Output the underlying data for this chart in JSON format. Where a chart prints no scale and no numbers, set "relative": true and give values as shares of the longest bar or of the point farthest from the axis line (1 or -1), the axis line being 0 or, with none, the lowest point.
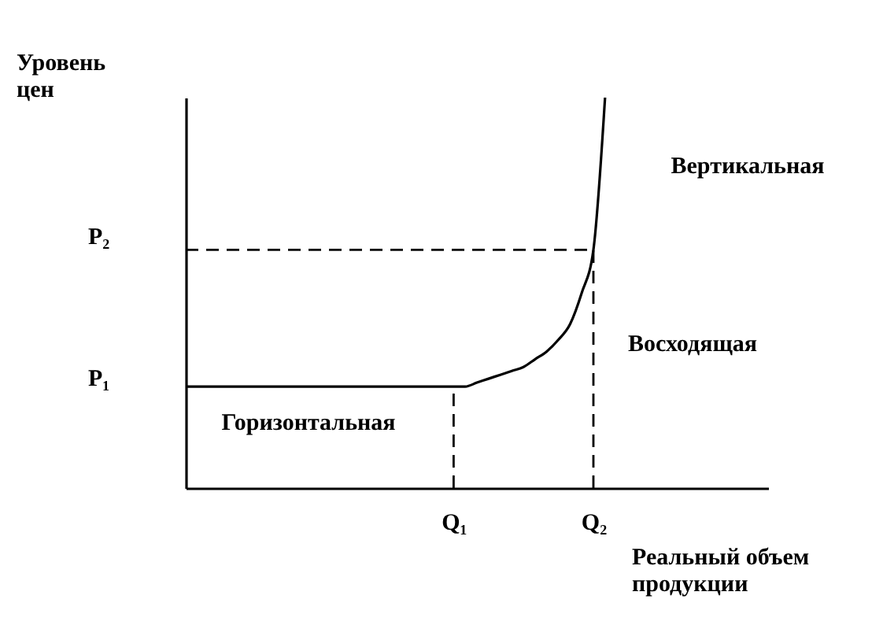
{
  "chart_data": {
    "type": "line",
    "relative": true,
    "xlabel": "Реальный объем продукции",
    "ylabel": "Уровень цен",
    "grid": false,
    "marker": "none",
    "categories": [
      null,
      null,
      null,
      null,
      null,
      null,
      null,
      null,
      null,
      null,
      null,
      null,
      null,
      null,
      null,
      null,
      null,
      null,
      null,
      null,
      null,
      null,
      null,
      "Q₁",
      null,
      null,
      null,
      null,
      null,
      null,
      null,
      null,
      null,
      null,
      null,
      "Q₂",
      null,
      null,
      null,
      null,
      null,
      null,
      null,
      null,
      null,
      null,
      null,
      null,
      null,
      null,
      null
    ],
    "series": [
      {
        "color": "#000000",
        "line_style": "solid",
        "values": [
          0.26,
          0.26,
          0.26,
          0.26,
          0.26,
          0.26,
          0.26,
          0.26,
          0.26,
          0.26,
          0.26,
          0.26,
          0.26,
          0.26,
          0.26,
          0.26,
          0.26,
          0.26,
          0.26,
          0.26,
          0.26,
          0.26,
          0.26,
          0.26,
          0.26,
          0.27,
          0.28,
          0.29,
          0.3,
          0.31,
          0.33,
          0.35,
          0.38,
          0.42,
          0.5,
          0.61,
          1,
          null,
          null,
          null,
          null,
          null,
          null,
          null,
          null,
          null,
          null,
          null,
          null,
          null,
          null
        ]
      }
    ],
    "ref_lines": [
      {
        "axis": "x",
        "value": "Q₁",
        "line_style": "dashed",
        "color": "#000000"
      },
      {
        "axis": "x",
        "value": "Q₂",
        "line_style": "dashed",
        "color": "#000000"
      },
      {
        "axis": "y",
        "value": 0.61,
        "line_style": "dashed",
        "color": "#000000"
      }
    ],
    "annotations": [
      "Вертикальная",
      "Восходящая",
      "Горизонтальная",
      "P₂",
      "P₁"
    ]
  }
}
